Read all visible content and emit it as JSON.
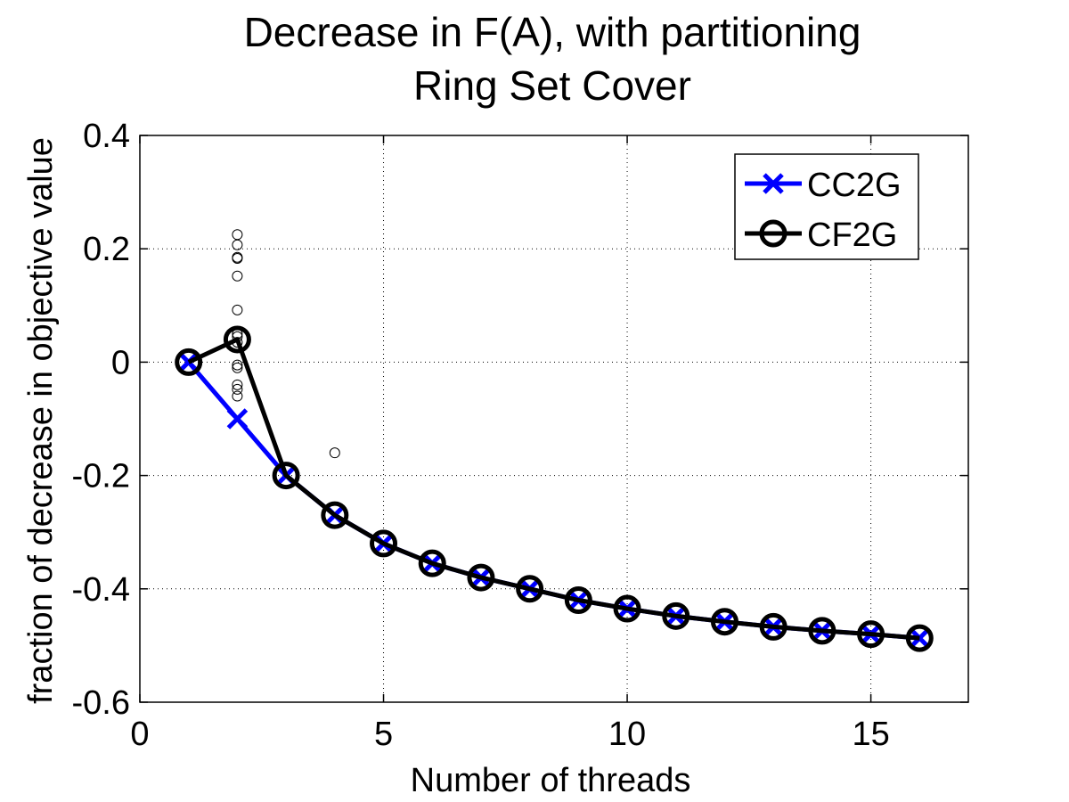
{
  "chart_data": {
    "type": "line",
    "title": "Decrease in F(A), with partitioning",
    "subtitle": "Ring Set Cover",
    "xlabel": "Number of threads",
    "ylabel": "fraction of decrease in objective value",
    "xlim": [
      0,
      17
    ],
    "ylim": [
      -0.6,
      0.4
    ],
    "xticks": [
      0,
      5,
      10,
      15
    ],
    "yticks": [
      -0.6,
      -0.4,
      -0.2,
      0,
      0.2,
      0.4
    ],
    "xtick_labels": [
      "0",
      "5",
      "10",
      "15"
    ],
    "ytick_labels": [
      "-0.6",
      "-0.4",
      "-0.2",
      "0",
      "0.2",
      "0.4"
    ],
    "grid": true,
    "legend_position": "top-right",
    "series": [
      {
        "name": "CC2G",
        "color": "#0000ff",
        "marker": "x",
        "x": [
          1,
          2,
          3,
          4,
          5,
          6,
          7,
          8,
          9,
          10,
          11,
          12,
          13,
          14,
          15,
          16
        ],
        "y": [
          0,
          -0.1,
          -0.2,
          -0.27,
          -0.32,
          -0.355,
          -0.38,
          -0.4,
          -0.42,
          -0.435,
          -0.448,
          -0.458,
          -0.467,
          -0.474,
          -0.48,
          -0.487
        ]
      },
      {
        "name": "CF2G",
        "color": "#000000",
        "marker": "o",
        "x": [
          1,
          2,
          3,
          4,
          5,
          6,
          7,
          8,
          9,
          10,
          11,
          12,
          13,
          14,
          15,
          16
        ],
        "y": [
          0,
          0.04,
          -0.2,
          -0.27,
          -0.32,
          -0.355,
          -0.38,
          -0.4,
          -0.42,
          -0.435,
          -0.448,
          -0.458,
          -0.467,
          -0.474,
          -0.48,
          -0.487
        ]
      }
    ],
    "scatter_points": [
      {
        "x": 2,
        "y": 0.225
      },
      {
        "x": 2,
        "y": 0.207
      },
      {
        "x": 2,
        "y": 0.185
      },
      {
        "x": 2,
        "y": 0.183
      },
      {
        "x": 2,
        "y": 0.152
      },
      {
        "x": 2,
        "y": 0.092
      },
      {
        "x": 2,
        "y": 0.05
      },
      {
        "x": 2,
        "y": 0.045
      },
      {
        "x": 2,
        "y": 0.035
      },
      {
        "x": 2,
        "y": -0.005
      },
      {
        "x": 2,
        "y": -0.01
      },
      {
        "x": 2,
        "y": -0.04
      },
      {
        "x": 2,
        "y": -0.048
      },
      {
        "x": 2,
        "y": -0.06
      },
      {
        "x": 4,
        "y": -0.16
      }
    ]
  }
}
